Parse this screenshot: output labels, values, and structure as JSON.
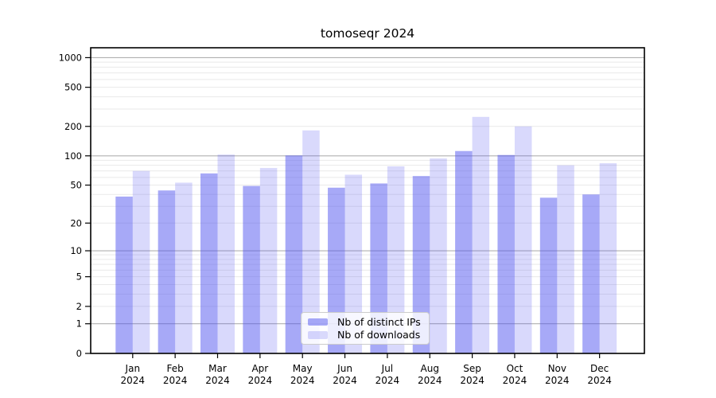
{
  "title": "tomoseqr 2024",
  "chart_data": {
    "type": "bar",
    "title": "tomoseqr 2024",
    "categories": [
      "Jan",
      "Feb",
      "Mar",
      "Apr",
      "May",
      "Jun",
      "Jul",
      "Aug",
      "Sep",
      "Oct",
      "Nov",
      "Dec"
    ],
    "x_year": "2024",
    "series": [
      {
        "name": "Nb of distinct IPs",
        "color": "rgba(80,84,240,0.5)",
        "values": [
          38,
          44,
          66,
          49,
          101,
          47,
          52,
          62,
          112,
          102,
          37,
          40
        ]
      },
      {
        "name": "Nb of downloads",
        "color": "rgba(80,84,240,0.22)",
        "values": [
          70,
          53,
          103,
          75,
          182,
          64,
          78,
          94,
          250,
          200,
          80,
          84
        ]
      }
    ],
    "yscale": "log1p",
    "ylim": [
      0,
      1260
    ],
    "yticks": [
      0,
      1,
      2,
      5,
      10,
      20,
      50,
      100,
      200,
      500,
      1000
    ],
    "grid": true,
    "grid_major": [
      1,
      10,
      100,
      1000
    ],
    "grid_minor": [
      2,
      3,
      4,
      5,
      6,
      7,
      8,
      9,
      20,
      30,
      40,
      50,
      60,
      70,
      80,
      90,
      200,
      300,
      400,
      500,
      600,
      700,
      800,
      900
    ],
    "legend_position": "lower center"
  },
  "colors": {
    "background": "#ffffff",
    "frame": "#000000",
    "grid_major": "#b0b0b0",
    "grid_minor": "#e9e9e9",
    "tick_text": "#000000",
    "bar_ips": "rgba(80,84,240,0.5)",
    "bar_downloads": "rgba(80,84,240,0.22)"
  }
}
